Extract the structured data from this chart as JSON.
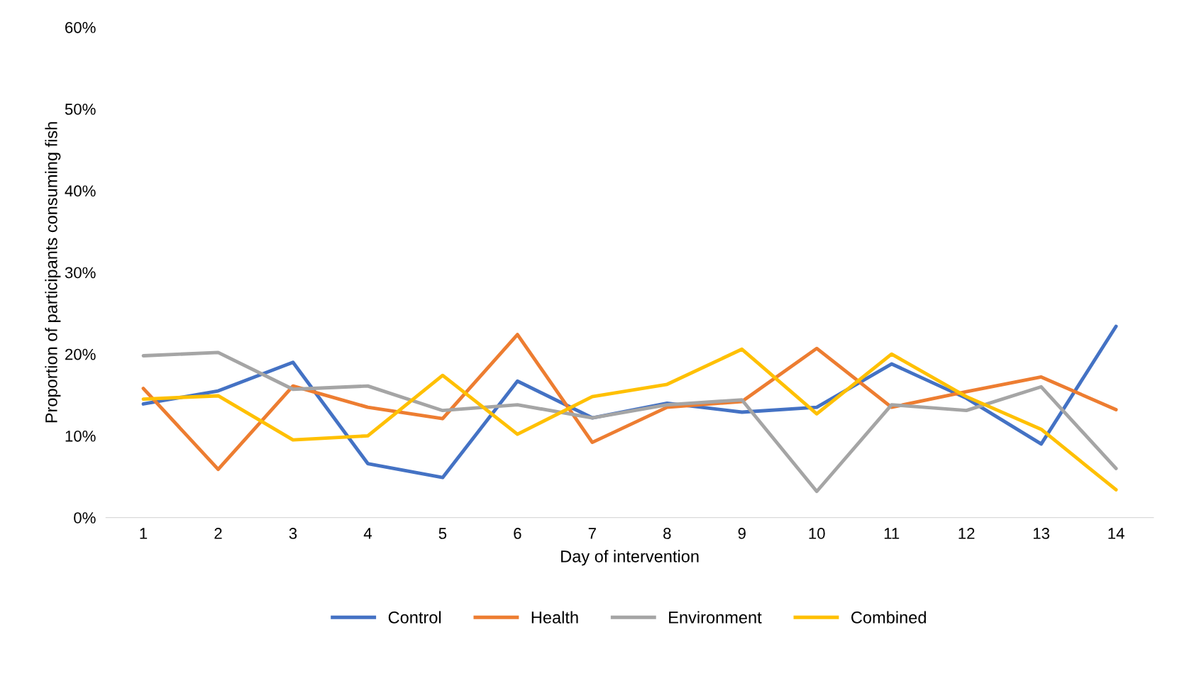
{
  "chart_data": {
    "type": "line",
    "xlabel": "Day of intervention",
    "ylabel": "Proportion of participants consuming fish",
    "categories": [
      "1",
      "2",
      "3",
      "4",
      "5",
      "6",
      "7",
      "8",
      "9",
      "10",
      "11",
      "12",
      "13",
      "14"
    ],
    "series": [
      {
        "name": "Control",
        "color": "#4472c4",
        "values": [
          13.9,
          15.5,
          19.0,
          6.6,
          4.9,
          16.7,
          12.2,
          14.0,
          12.9,
          13.5,
          18.8,
          14.6,
          9.0,
          23.4
        ]
      },
      {
        "name": "Health",
        "color": "#ed7d31",
        "values": [
          15.8,
          5.9,
          16.1,
          13.5,
          12.1,
          22.4,
          9.2,
          13.5,
          14.2,
          20.7,
          13.5,
          15.4,
          17.2,
          13.2
        ]
      },
      {
        "name": "Environment",
        "color": "#a5a5a5",
        "values": [
          19.8,
          20.2,
          15.7,
          16.1,
          13.1,
          13.8,
          12.2,
          13.8,
          14.4,
          3.2,
          13.8,
          13.1,
          16.0,
          6.0
        ]
      },
      {
        "name": "Combined",
        "color": "#ffc000",
        "values": [
          14.5,
          14.9,
          9.5,
          10.0,
          17.4,
          10.2,
          14.8,
          16.3,
          20.6,
          12.7,
          20.0,
          14.8,
          10.8,
          3.4
        ]
      }
    ],
    "ylim": [
      0,
      60
    ],
    "yticks": [
      {
        "value": 0,
        "label": "0%"
      },
      {
        "value": 10,
        "label": "10%"
      },
      {
        "value": 20,
        "label": "20%"
      },
      {
        "value": 30,
        "label": "30%"
      },
      {
        "value": 40,
        "label": "40%"
      },
      {
        "value": 50,
        "label": "50%"
      },
      {
        "value": 60,
        "label": "60%"
      }
    ],
    "grid": false,
    "legend": "bottom",
    "marker": "none",
    "line_style": "solid"
  }
}
